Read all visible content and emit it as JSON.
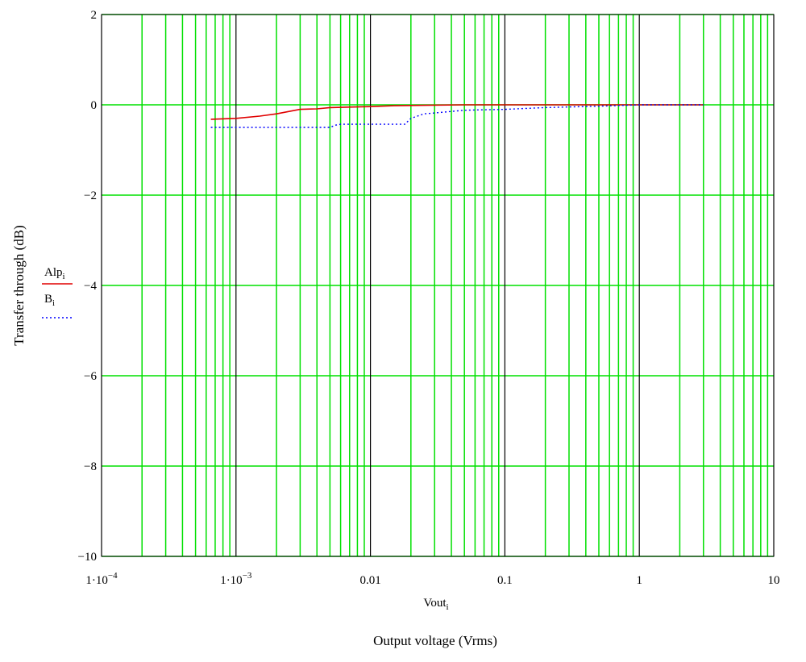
{
  "chart_data": {
    "type": "line",
    "x_scale": "log",
    "xlim": [
      0.0001,
      10
    ],
    "ylim": [
      -10,
      2
    ],
    "y_ticks": [
      2,
      0,
      -2,
      -4,
      -6,
      -8,
      -10
    ],
    "y_tick_labels": [
      "2",
      "0",
      "−2",
      "−4",
      "−6",
      "−8",
      "−10"
    ],
    "x_ticks": [
      0.0001,
      0.001,
      0.01,
      0.1,
      1,
      10
    ],
    "x_tick_labels": [
      {
        "base": "1·10",
        "exp": "−4"
      },
      {
        "base": "1·10",
        "exp": "−3"
      },
      {
        "base": "0.01",
        "exp": ""
      },
      {
        "base": "0.1",
        "exp": ""
      },
      {
        "base": "1",
        "exp": ""
      },
      {
        "base": "10",
        "exp": ""
      }
    ],
    "x_var": {
      "name": "Vout",
      "sub": "i"
    },
    "xlabel": "Output voltage (Vrms)",
    "ylabel": "Transfer through (dB)",
    "grid": true,
    "grid_color": "#00e000",
    "decade_line_color": "#000000",
    "legend_placement": "left",
    "series": [
      {
        "name": "Alp",
        "sub": "i",
        "color": "#e00000",
        "style": "solid",
        "points": [
          [
            0.00065,
            -0.32
          ],
          [
            0.001,
            -0.3
          ],
          [
            0.0015,
            -0.25
          ],
          [
            0.002,
            -0.2
          ],
          [
            0.003,
            -0.1
          ],
          [
            0.004,
            -0.09
          ],
          [
            0.005,
            -0.06
          ],
          [
            0.007,
            -0.05
          ],
          [
            0.01,
            -0.04
          ],
          [
            0.015,
            -0.02
          ],
          [
            0.025,
            -0.01
          ],
          [
            0.05,
            0.0
          ],
          [
            0.1,
            0.0
          ],
          [
            1,
            0.0
          ],
          [
            3,
            0.0
          ]
        ]
      },
      {
        "name": "B",
        "sub": "i",
        "color": "#0000ff",
        "style": "dotted",
        "points": [
          [
            0.00065,
            -0.5
          ],
          [
            0.005,
            -0.5
          ],
          [
            0.0055,
            -0.45
          ],
          [
            0.006,
            -0.43
          ],
          [
            0.013,
            -0.43
          ],
          [
            0.018,
            -0.43
          ],
          [
            0.02,
            -0.3
          ],
          [
            0.025,
            -0.2
          ],
          [
            0.03,
            -0.18
          ],
          [
            0.05,
            -0.12
          ],
          [
            0.1,
            -0.1
          ],
          [
            0.2,
            -0.06
          ],
          [
            0.5,
            -0.03
          ],
          [
            1,
            0.0
          ],
          [
            2,
            0.0
          ],
          [
            3,
            0.0
          ]
        ]
      }
    ]
  }
}
